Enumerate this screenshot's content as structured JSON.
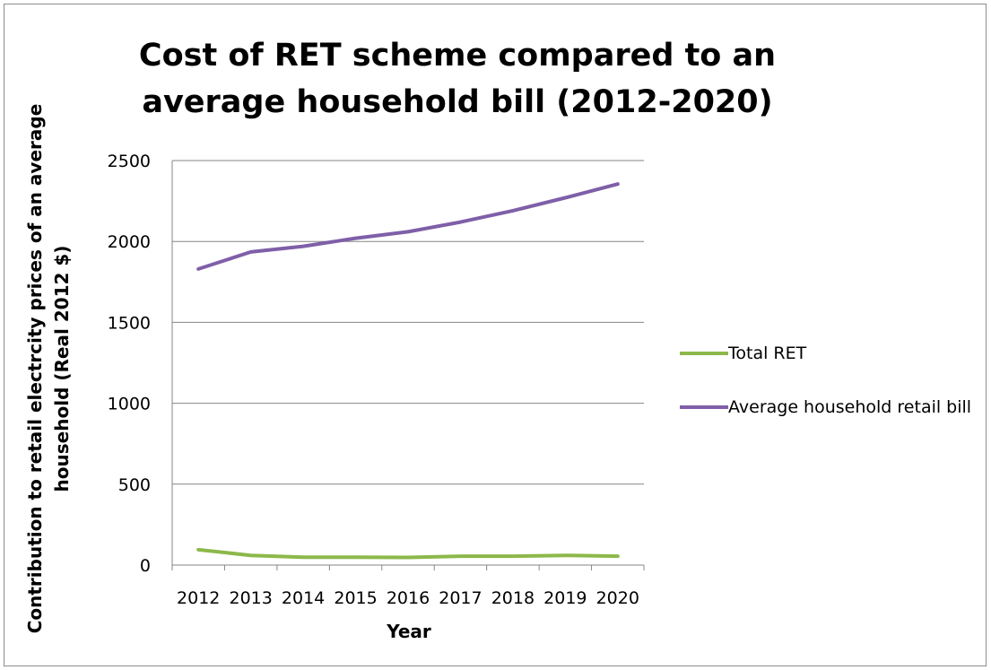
{
  "chart_data": {
    "type": "line",
    "title": "Cost of RET scheme compared to an average household bill (2012-2020)",
    "xlabel": "Year",
    "ylabel": "Contribution to retail electrcity prices of an average household (Real 2012 $)",
    "categories": [
      "2012",
      "2013",
      "2014",
      "2015",
      "2016",
      "2017",
      "2018",
      "2019",
      "2020"
    ],
    "ylim": [
      0,
      2500
    ],
    "yticks": [
      0,
      500,
      1000,
      1500,
      2000,
      2500
    ],
    "grid": true,
    "legend_position": "right",
    "series": [
      {
        "name": "Total RET",
        "color": "#8db84a",
        "values": [
          95,
          60,
          48,
          48,
          47,
          55,
          55,
          60,
          55
        ]
      },
      {
        "name": "Average household retail bill",
        "color": "#7f5fa8",
        "values": [
          1830,
          1935,
          1970,
          2020,
          2060,
          2120,
          2190,
          2270,
          2355
        ]
      }
    ]
  }
}
